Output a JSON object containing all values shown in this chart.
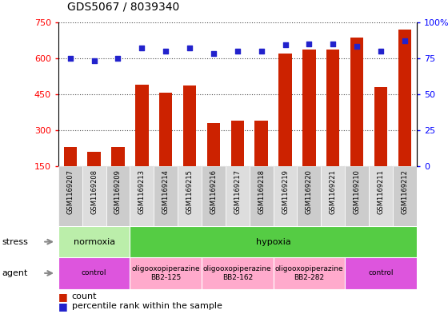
{
  "title": "GDS5067 / 8039340",
  "samples": [
    "GSM1169207",
    "GSM1169208",
    "GSM1169209",
    "GSM1169213",
    "GSM1169214",
    "GSM1169215",
    "GSM1169216",
    "GSM1169217",
    "GSM1169218",
    "GSM1169219",
    "GSM1169220",
    "GSM1169221",
    "GSM1169210",
    "GSM1169211",
    "GSM1169212"
  ],
  "bar_values": [
    230,
    210,
    230,
    490,
    455,
    485,
    330,
    340,
    340,
    620,
    635,
    635,
    685,
    480,
    720
  ],
  "percentile_values": [
    75,
    73,
    75,
    82,
    80,
    82,
    78,
    80,
    80,
    84,
    85,
    85,
    83,
    80,
    87
  ],
  "bar_baseline": 150,
  "ylim_left": [
    150,
    750
  ],
  "ylim_right": [
    0,
    100
  ],
  "yticks_left": [
    150,
    300,
    450,
    600,
    750
  ],
  "yticks_right": [
    0,
    25,
    50,
    75,
    100
  ],
  "bar_color": "#cc2200",
  "dot_color": "#2222cc",
  "stress_groups": [
    {
      "label": "normoxia",
      "start": 0,
      "end": 3,
      "color": "#bbeeaa"
    },
    {
      "label": "hypoxia",
      "start": 3,
      "end": 15,
      "color": "#55cc44"
    }
  ],
  "agent_groups": [
    {
      "label": "control",
      "start": 0,
      "end": 3,
      "color": "#dd55dd"
    },
    {
      "label": "oligooxopiperazine\nBB2-125",
      "start": 3,
      "end": 6,
      "color": "#ffaacc"
    },
    {
      "label": "oligooxopiperazine\nBB2-162",
      "start": 6,
      "end": 9,
      "color": "#ffaacc"
    },
    {
      "label": "oligooxopiperazine\nBB2-282",
      "start": 9,
      "end": 12,
      "color": "#ffaacc"
    },
    {
      "label": "control",
      "start": 12,
      "end": 15,
      "color": "#dd55dd"
    }
  ],
  "legend_count_label": "count",
  "legend_pct_label": "percentile rank within the sample",
  "bar_color_legend": "#cc2200",
  "dot_color_legend": "#2222cc",
  "stress_label": "stress",
  "agent_label": "agent"
}
